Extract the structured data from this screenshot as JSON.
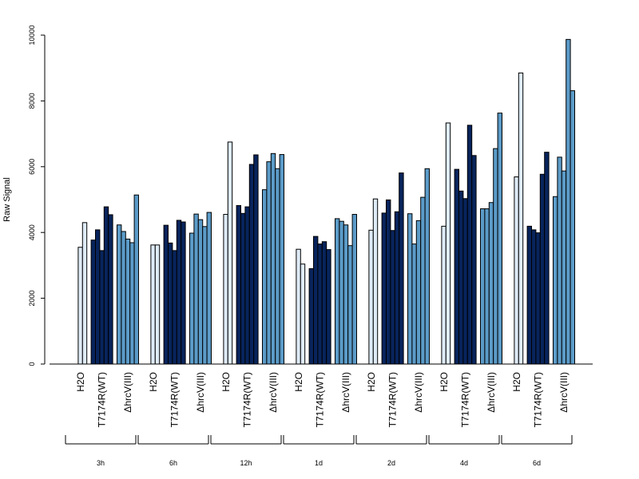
{
  "chart_data": {
    "type": "bar",
    "ylabel": "Raw Signal",
    "ylim": [
      0,
      10000
    ],
    "yticks": [
      0,
      2000,
      4000,
      6000,
      8000,
      10000
    ],
    "grid": false,
    "legend": "none",
    "category_labels": [
      "H2O",
      "T7174R(WT)",
      "ΔhrcV(III)"
    ],
    "colors": {
      "H2O": "#deebf7",
      "T7174R(WT)": "#08245c",
      "ΔhrcV(III)": "#5b9bc8"
    },
    "groups": [
      {
        "label": "3h",
        "treatments": [
          {
            "label": "H2O",
            "values": [
              0,
              3550,
              4300
            ]
          },
          {
            "label": "T7174R(WT)",
            "values": [
              3770,
              4080,
              3450,
              4780,
              4540
            ]
          },
          {
            "label": "ΔhrcV(III)",
            "values": [
              4230,
              4030,
              3800,
              3690,
              5140
            ]
          }
        ]
      },
      {
        "label": "6h",
        "treatments": [
          {
            "label": "H2O",
            "values": [
              0,
              3620,
              3620
            ]
          },
          {
            "label": "T7174R(WT)",
            "values": [
              4220,
              3680,
              3450,
              4370,
              4320
            ]
          },
          {
            "label": "ΔhrcV(III)",
            "values": [
              3980,
              4560,
              4390,
              4180,
              4610
            ]
          }
        ]
      },
      {
        "label": "12h",
        "treatments": [
          {
            "label": "H2O",
            "values": [
              0,
              4550,
              6750
            ]
          },
          {
            "label": "T7174R(WT)",
            "values": [
              4820,
              4580,
              4780,
              6070,
              6360
            ]
          },
          {
            "label": "ΔhrcV(III)",
            "values": [
              5300,
              6150,
              6400,
              5940,
              6370
            ]
          }
        ]
      },
      {
        "label": "1d",
        "treatments": [
          {
            "label": "H2O",
            "values": [
              0,
              3490,
              3040
            ]
          },
          {
            "label": "T7174R(WT)",
            "values": [
              2900,
              3880,
              3650,
              3720,
              3480
            ]
          },
          {
            "label": "ΔhrcV(III)",
            "values": [
              4420,
              4340,
              4230,
              3600,
              4550
            ]
          }
        ]
      },
      {
        "label": "2d",
        "treatments": [
          {
            "label": "H2O",
            "values": [
              0,
              4070,
              5020
            ]
          },
          {
            "label": "T7174R(WT)",
            "values": [
              4590,
              4990,
              4060,
              4630,
              5810
            ]
          },
          {
            "label": "ΔhrcV(III)",
            "values": [
              4570,
              3650,
              4360,
              5070,
              5940
            ]
          }
        ]
      },
      {
        "label": "4d",
        "treatments": [
          {
            "label": "H2O",
            "values": [
              0,
              4190,
              7330
            ]
          },
          {
            "label": "T7174R(WT)",
            "values": [
              5920,
              5260,
              5030,
              7260,
              6340
            ]
          },
          {
            "label": "ΔhrcV(III)",
            "values": [
              4720,
              4720,
              4910,
              6550,
              7630
            ]
          }
        ]
      },
      {
        "label": "6d",
        "treatments": [
          {
            "label": "H2O",
            "values": [
              0,
              5690,
              8850
            ]
          },
          {
            "label": "T7174R(WT)",
            "values": [
              4190,
              4080,
              3990,
              5770,
              6440
            ]
          },
          {
            "label": "ΔhrcV(III)",
            "values": [
              5090,
              6290,
              5870,
              9870,
              8310
            ]
          }
        ]
      }
    ]
  }
}
